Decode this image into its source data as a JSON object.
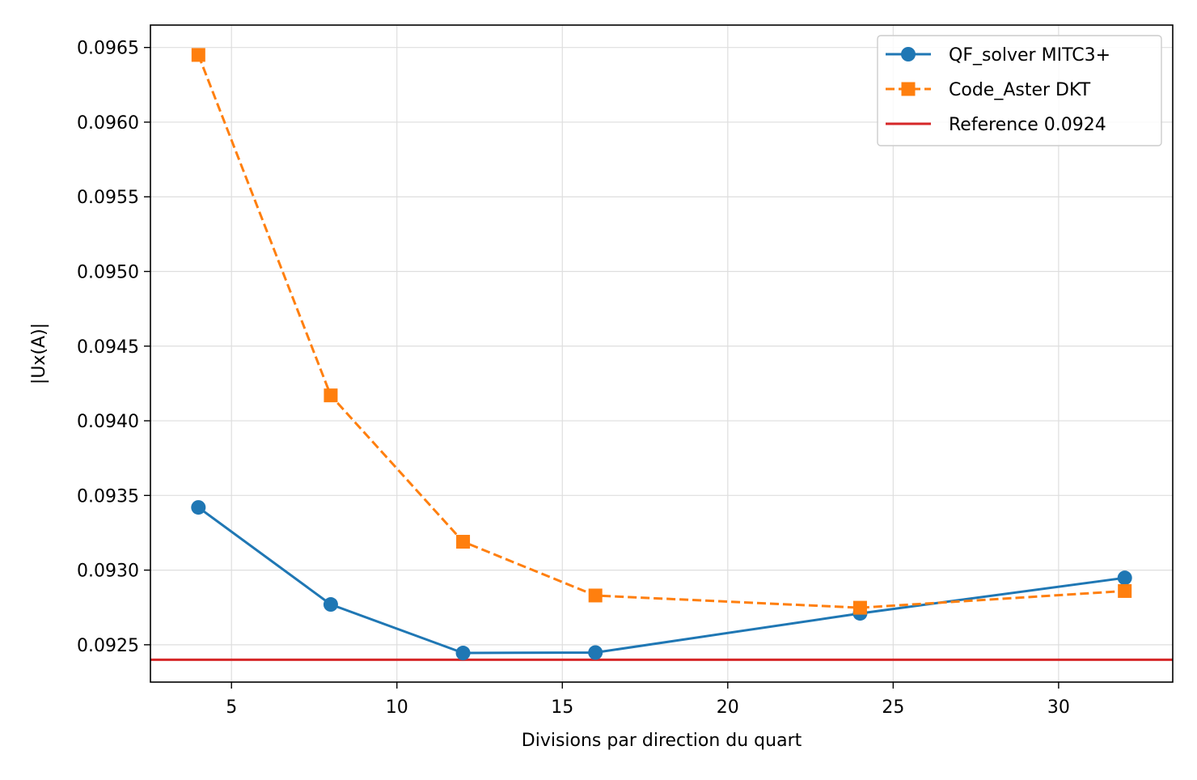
{
  "chart_data": {
    "type": "line",
    "title": "",
    "xlabel": "Divisions par direction du quart",
    "ylabel": "|Ux(A)|",
    "xlim": [
      2.55,
      33.45
    ],
    "ylim": [
      0.09225,
      0.09665
    ],
    "xticks": [
      5,
      10,
      15,
      20,
      25,
      30
    ],
    "xtick_labels": [
      "5",
      "10",
      "15",
      "20",
      "25",
      "30"
    ],
    "yticks": [
      0.0925,
      0.093,
      0.0935,
      0.094,
      0.0945,
      0.095,
      0.0955,
      0.096,
      0.0965
    ],
    "ytick_labels": [
      "0.0925",
      "0.0930",
      "0.0935",
      "0.0940",
      "0.0945",
      "0.0950",
      "0.0955",
      "0.0960",
      "0.0965"
    ],
    "grid": true,
    "legend_position": "top-right",
    "series": [
      {
        "name": "QF_solver MITC3+",
        "color": "#1f77b4",
        "line_style": "solid",
        "marker": "circle",
        "x": [
          4,
          8,
          12,
          16,
          24,
          32
        ],
        "y": [
          0.09342,
          0.09277,
          0.092445,
          0.092448,
          0.09271,
          0.092948
        ]
      },
      {
        "name": "Code_Aster DKT",
        "color": "#ff7f0e",
        "line_style": "dashed",
        "marker": "square",
        "x": [
          4,
          8,
          12,
          16,
          24,
          32
        ],
        "y": [
          0.09645,
          0.09417,
          0.09319,
          0.09283,
          0.092748,
          0.09286
        ]
      }
    ],
    "reference_lines": [
      {
        "name": "Reference 0.0924",
        "y": 0.0924,
        "color": "#d62728",
        "line_style": "solid"
      }
    ]
  }
}
